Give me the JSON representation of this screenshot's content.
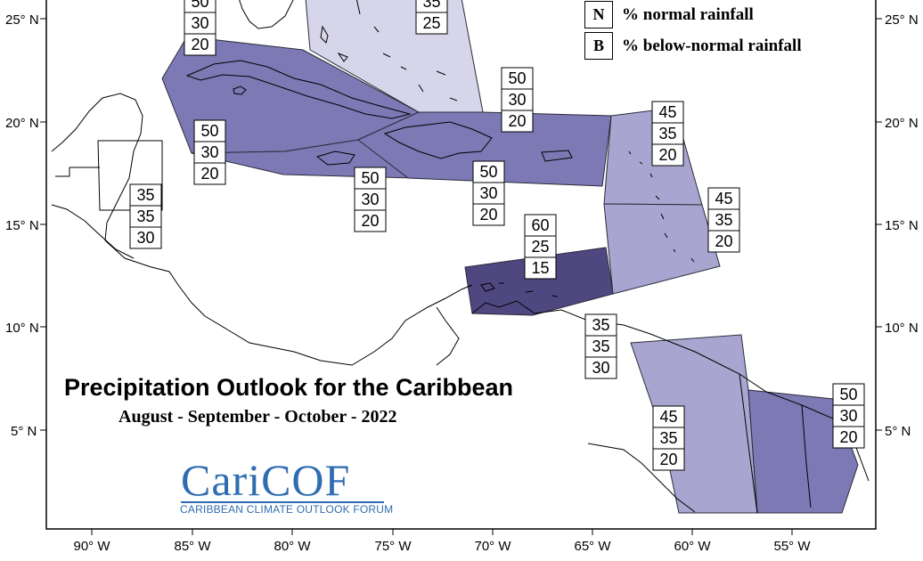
{
  "title": "Precipitation Outlook for the Caribbean",
  "subtitle": "August - September - October - 2022",
  "legend": [
    {
      "key": "N",
      "text": "% normal rainfall"
    },
    {
      "key": "B",
      "text": "% below-normal rainfall"
    }
  ],
  "logo": {
    "name": "CariCOF",
    "tagline": "CARIBBEAN CLIMATE OUTLOOK FORUM"
  },
  "lat_labels": [
    "25° N",
    "20° N",
    "15° N",
    "10° N",
    "5° N"
  ],
  "lon_labels": [
    "90° W",
    "85° W",
    "80° W",
    "75° W",
    "70° W",
    "65° W",
    "60° W",
    "55° W"
  ],
  "colors": {
    "lightest": "#d6d5ea",
    "light": "#a8a6d0",
    "medium": "#7c79b4",
    "dark": "#4f4780"
  },
  "regions": [
    {
      "name": "bahamas",
      "shade": "lightest"
    },
    {
      "name": "cuba",
      "shade": "medium"
    },
    {
      "name": "cayman-jamaica",
      "shade": "medium"
    },
    {
      "name": "hispaniola-puerto-rico",
      "shade": "medium"
    },
    {
      "name": "leeward-islands",
      "shade": "light"
    },
    {
      "name": "windward-islands",
      "shade": "light"
    },
    {
      "name": "trinidad-abc-islands",
      "shade": "dark"
    },
    {
      "name": "guyana",
      "shade": "light"
    },
    {
      "name": "suriname-french-guiana",
      "shade": "medium"
    }
  ],
  "probability_boxes": [
    {
      "name": "belize",
      "values": [
        "35",
        "35",
        "30"
      ]
    },
    {
      "name": "bahamas-north",
      "values": [
        "50",
        "30",
        "20"
      ]
    },
    {
      "name": "bahamas-east",
      "values": [
        "35",
        "25"
      ]
    },
    {
      "name": "cuba-west",
      "values": [
        "50",
        "30",
        "20"
      ]
    },
    {
      "name": "hispaniola",
      "values": [
        "50",
        "30",
        "20"
      ]
    },
    {
      "name": "leeward",
      "values": [
        "45",
        "35",
        "20"
      ]
    },
    {
      "name": "windward",
      "values": [
        "45",
        "35",
        "20"
      ]
    },
    {
      "name": "cayman",
      "values": [
        "50",
        "30",
        "20"
      ]
    },
    {
      "name": "jamaica",
      "values": [
        "50",
        "30",
        "20"
      ]
    },
    {
      "name": "puerto-rico",
      "values": [
        "50",
        "30",
        "20"
      ]
    },
    {
      "name": "trinidad",
      "values": [
        "60",
        "25",
        "15"
      ]
    },
    {
      "name": "venezuela-coast",
      "values": [
        "35",
        "35",
        "30"
      ]
    },
    {
      "name": "guyana",
      "values": [
        "45",
        "35",
        "20"
      ]
    },
    {
      "name": "french-guiana",
      "values": [
        "50",
        "30",
        "20"
      ]
    }
  ]
}
